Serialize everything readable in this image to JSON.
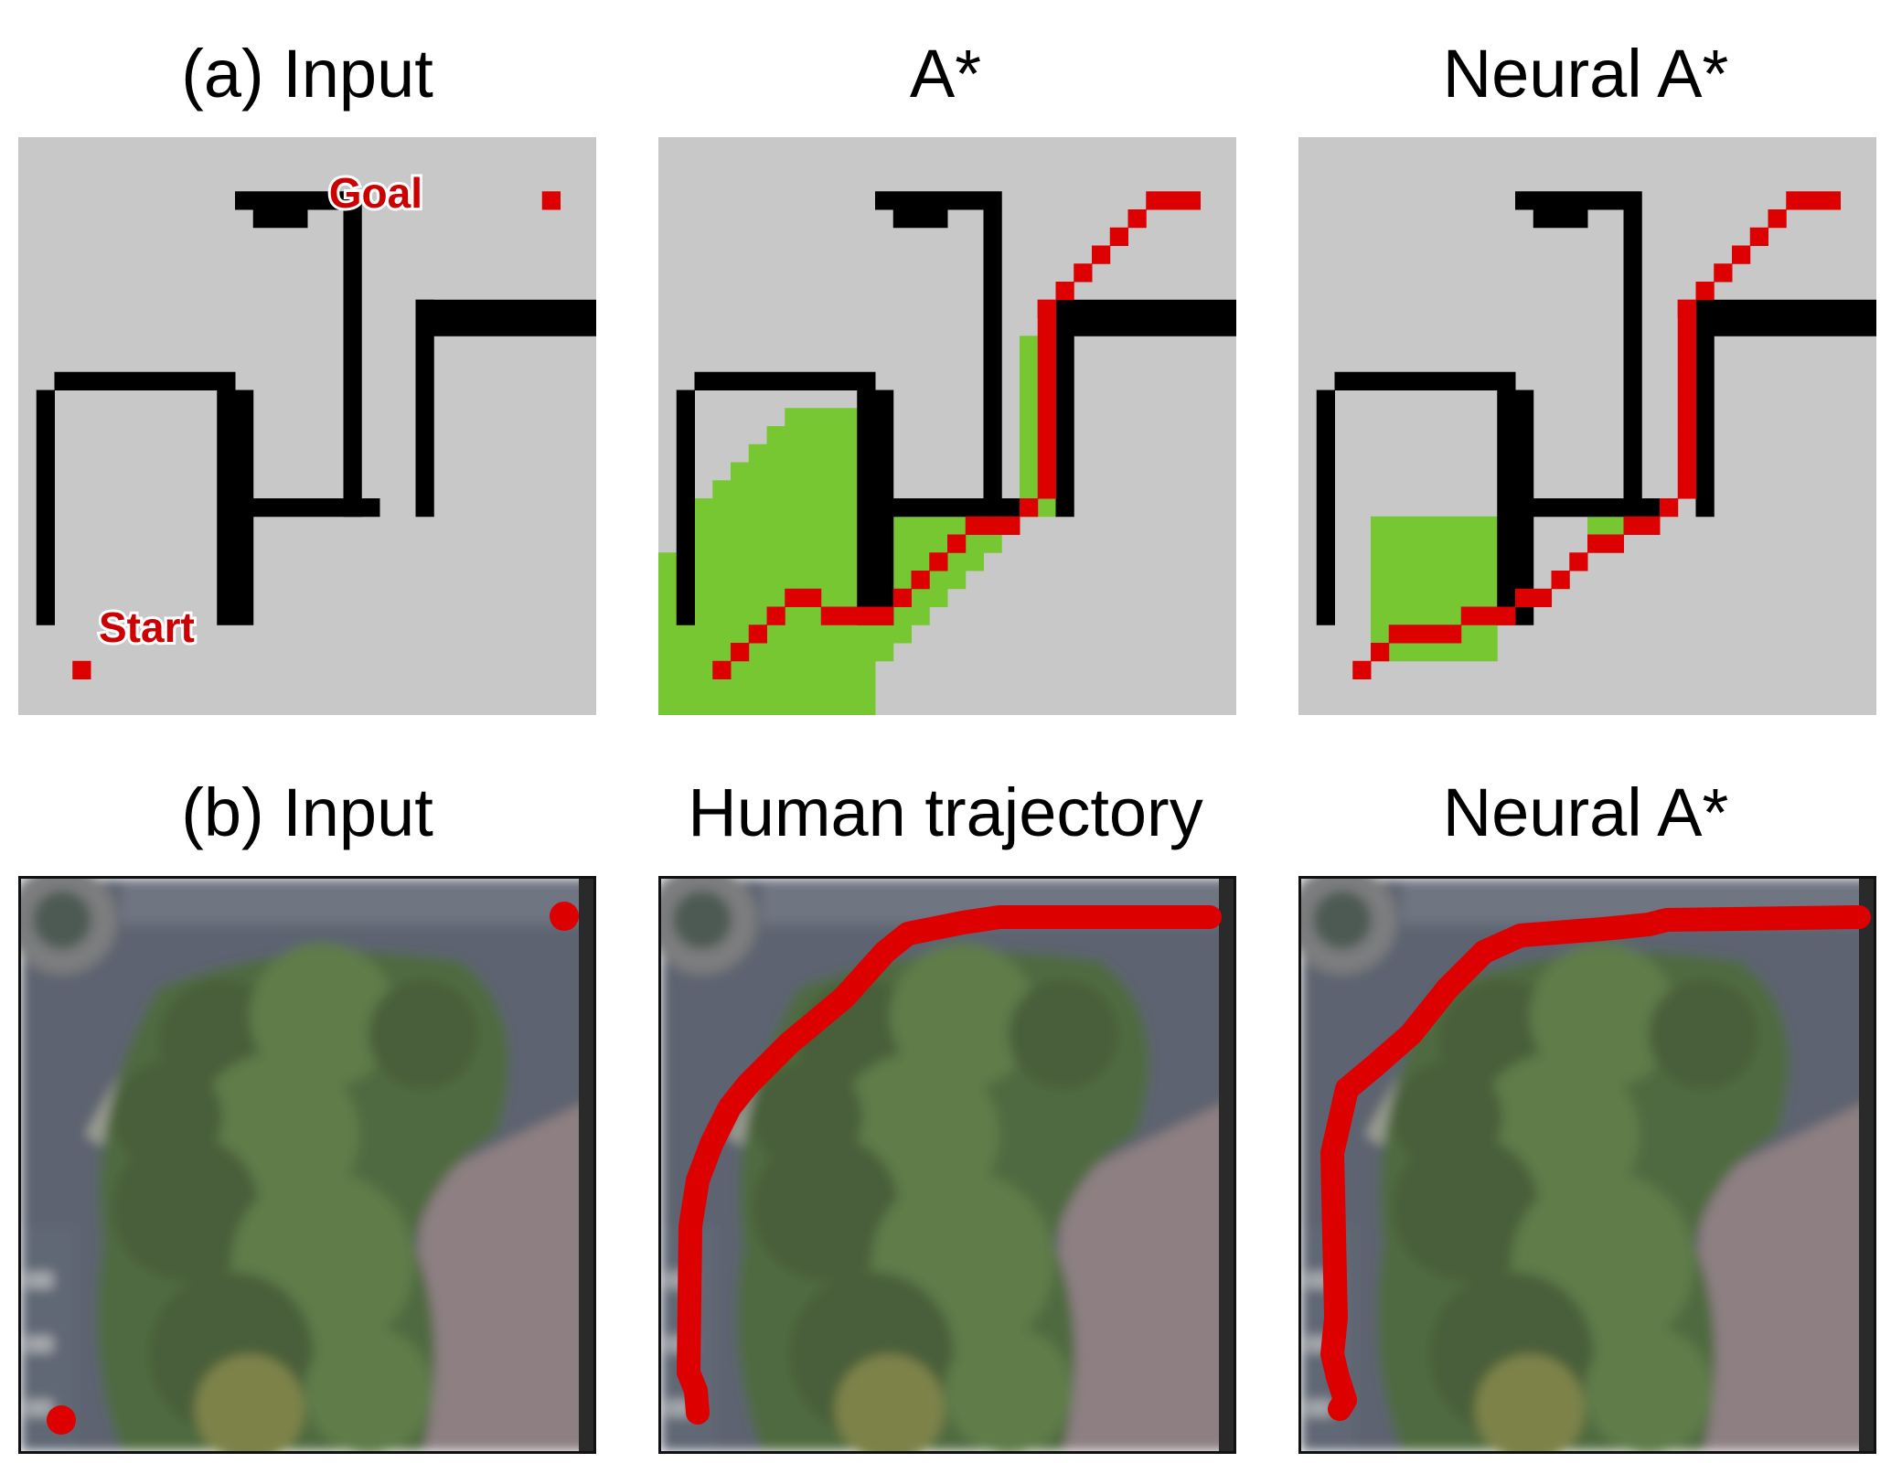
{
  "row_a": {
    "titles": [
      "(a) Input",
      "A*",
      "Neural A*"
    ],
    "start_label": "Start",
    "goal_label": "Goal"
  },
  "row_b": {
    "titles": [
      "(b) Input",
      "Human trajectory",
      "Neural A*"
    ]
  },
  "colors": {
    "background": "#c8c8c8",
    "obstacle": "#000000",
    "path": "#dd0000",
    "explored": "#77c733",
    "label_text": "#cc0000"
  }
}
